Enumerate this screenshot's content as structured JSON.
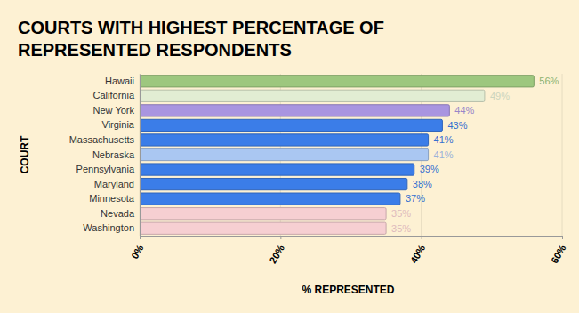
{
  "chart_data": {
    "type": "bar",
    "orientation": "horizontal",
    "title": "COURTS WITH HIGHEST PERCENTAGE OF REPRESENTED RESPONDENTS",
    "x_label": "% REPRESENTED",
    "y_label": "COURT",
    "categories": [
      "Hawaii",
      "California",
      "New York",
      "Virginia",
      "Massachusetts",
      "Nebraska",
      "Pennsylvania",
      "Maryland",
      "Minnesota",
      "Nevada",
      "Washington"
    ],
    "values": [
      56,
      49,
      44,
      43,
      41,
      41,
      39,
      38,
      37,
      35,
      35
    ],
    "value_labels": [
      "56%",
      "49%",
      "44%",
      "43%",
      "41%",
      "41%",
      "39%",
      "38%",
      "37%",
      "35%",
      "35%"
    ],
    "colors": [
      "#9dc77e",
      "#e2edd3",
      "#a995e0",
      "#3b7de8",
      "#3b7de8",
      "#aac7f2",
      "#3b7de8",
      "#3b7de8",
      "#3b7de8",
      "#f6cfd2",
      "#f6cfd2"
    ],
    "xlim": [
      0,
      60
    ],
    "xticks": [
      {
        "value": 0,
        "label": "0%"
      },
      {
        "value": 20,
        "label": "20%"
      },
      {
        "value": 40,
        "label": "40%"
      },
      {
        "value": 60,
        "label": "60%"
      }
    ],
    "grid": true,
    "data_labels": true
  }
}
